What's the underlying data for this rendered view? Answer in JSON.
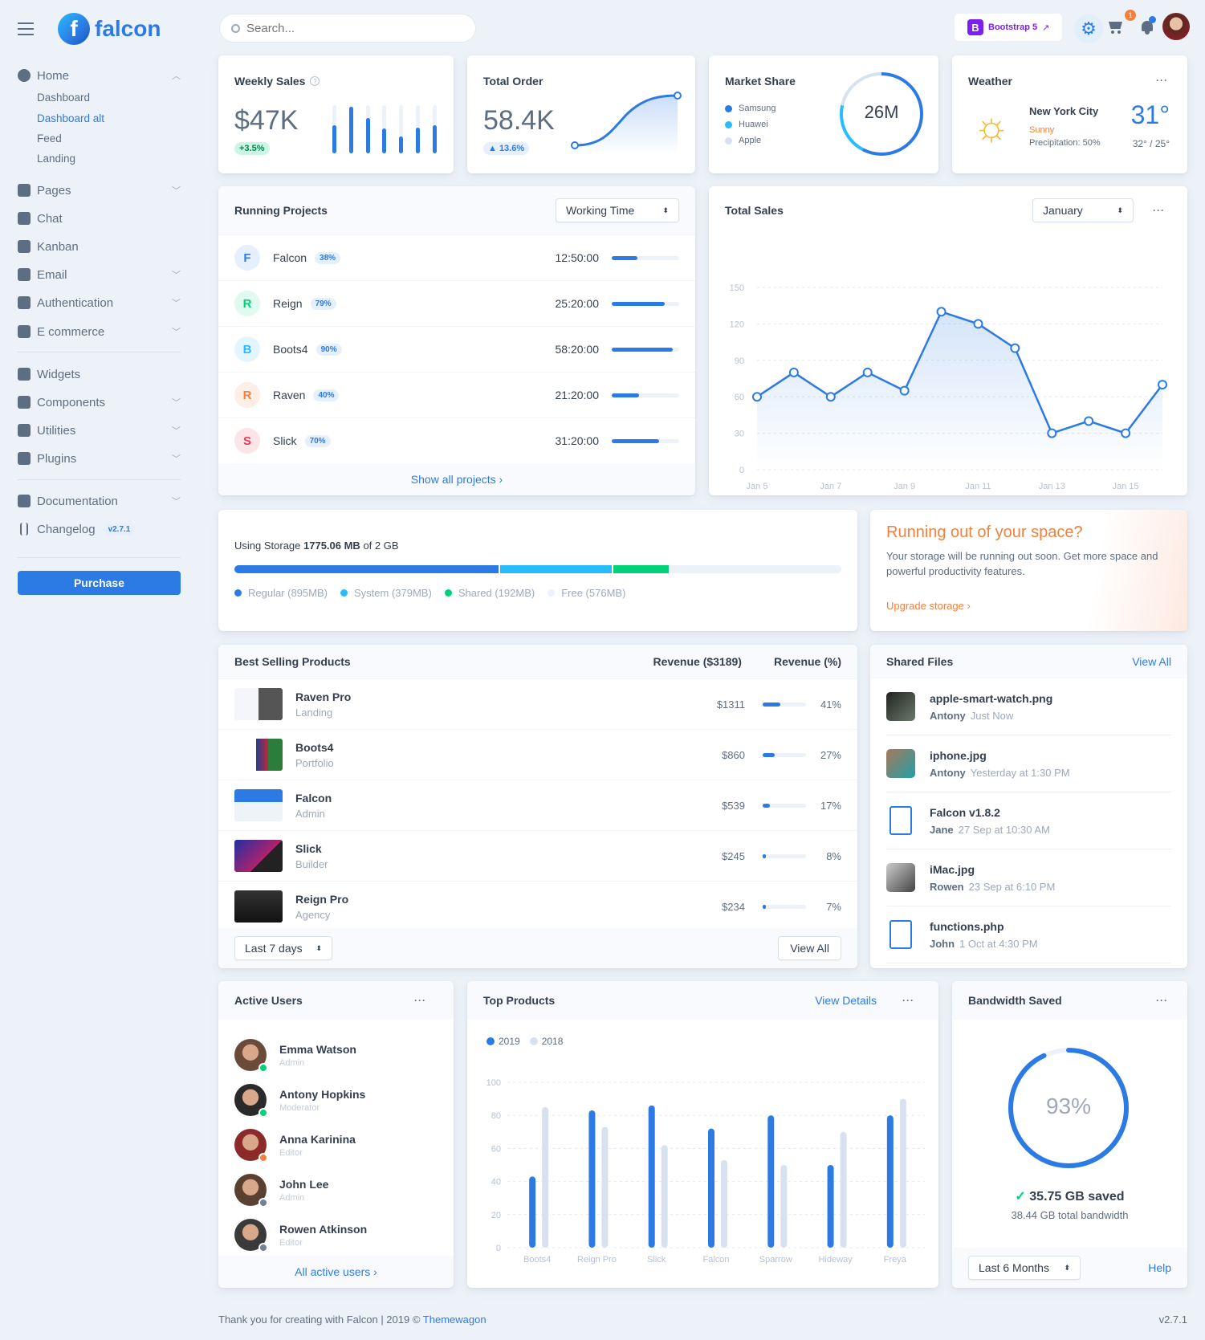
{
  "brand": {
    "name": "falcon"
  },
  "search": {
    "placeholder": "Search..."
  },
  "topbar": {
    "bootstrap_label": "Bootstrap 5",
    "cart_count": "1"
  },
  "sidebar": {
    "home": "Home",
    "sub": [
      "Dashboard",
      "Dashboard alt",
      "Feed",
      "Landing"
    ],
    "items": [
      {
        "label": "Pages",
        "chev": true
      },
      {
        "label": "Chat"
      },
      {
        "label": "Kanban"
      },
      {
        "label": "Email",
        "chev": true
      },
      {
        "label": "Authentication",
        "chev": true
      },
      {
        "label": "E commerce",
        "chev": true
      }
    ],
    "items2": [
      {
        "label": "Widgets"
      },
      {
        "label": "Components",
        "chev": true
      },
      {
        "label": "Utilities",
        "chev": true
      },
      {
        "label": "Plugins",
        "chev": true
      }
    ],
    "documentation": "Documentation",
    "changelog": "Changelog",
    "changelog_badge": "v2.7.1",
    "purchase": "Purchase"
  },
  "weekly_sales": {
    "title": "Weekly Sales",
    "value": "$47K",
    "change": "+3.5%",
    "bars": [
      58,
      97,
      73,
      51,
      35,
      54,
      58
    ]
  },
  "total_order": {
    "title": "Total Order",
    "value": "58.4K",
    "change": "▲ 13.6%"
  },
  "market_share": {
    "title": "Market Share",
    "center": "26M",
    "items": [
      {
        "label": "Samsung",
        "color": "#2c7be5",
        "share": 57.6
      },
      {
        "label": "Huawei",
        "color": "#27bcfd",
        "share": 20.7
      },
      {
        "label": "Apple",
        "color": "#d8e2ef",
        "share": 21.7
      }
    ]
  },
  "weather": {
    "title": "Weather",
    "city": "New York City",
    "condition": "Sunny",
    "precipitation": "Precipitation: 50%",
    "temp": "31°",
    "range": "32° / 25°"
  },
  "running_projects": {
    "title": "Running Projects",
    "select": "Working Time",
    "footer": "Show all projects ›",
    "rows": [
      {
        "initial": "F",
        "name": "Falcon",
        "pct": "38%",
        "value": 38,
        "time": "12:50:00",
        "fg": "#2c7be5",
        "bg": "#e6effc"
      },
      {
        "initial": "R",
        "name": "Reign",
        "pct": "79%",
        "value": 79,
        "time": "25:20:00",
        "fg": "#00d27a",
        "bg": "#e0faef"
      },
      {
        "initial": "B",
        "name": "Boots4",
        "pct": "90%",
        "value": 90,
        "time": "58:20:00",
        "fg": "#27bcfd",
        "bg": "#e3f6ff"
      },
      {
        "initial": "R",
        "name": "Raven",
        "pct": "40%",
        "value": 40,
        "time": "21:20:00",
        "fg": "#f5803e",
        "bg": "#fdeee6"
      },
      {
        "initial": "S",
        "name": "Slick",
        "pct": "70%",
        "value": 70,
        "time": "31:20:00",
        "fg": "#e63757",
        "bg": "#fbe5e9"
      }
    ]
  },
  "chart_data": [
    {
      "type": "line",
      "title": "Total Sales",
      "select": "January",
      "x": [
        "Jan 5",
        "Jan 6",
        "Jan 7",
        "Jan 8",
        "Jan 9",
        "Jan 10",
        "Jan 11",
        "Jan 12",
        "Jan 13",
        "Jan 14",
        "Jan 15",
        "Jan 16"
      ],
      "xticks": [
        "Jan 5",
        "Jan 7",
        "Jan 9",
        "Jan 11",
        "Jan 13",
        "Jan 15"
      ],
      "y": [
        60,
        80,
        60,
        80,
        65,
        130,
        120,
        100,
        30,
        40,
        30,
        70
      ],
      "ylim": [
        0,
        150
      ],
      "yticks": [
        0,
        30,
        60,
        90,
        120,
        150
      ],
      "grid": true,
      "color": "#2c7be5"
    },
    {
      "type": "bar",
      "title": "Top Products",
      "categories": [
        "Boots4",
        "Reign Pro",
        "Slick",
        "Falcon",
        "Sparrow",
        "Hideway",
        "Freya"
      ],
      "series": [
        {
          "name": "2019",
          "values": [
            43,
            83,
            86,
            72,
            80,
            50,
            80
          ],
          "color": "#2c7be5"
        },
        {
          "name": "2018",
          "values": [
            85,
            73,
            62,
            53,
            50,
            70,
            90
          ],
          "color": "#d8e2ef"
        }
      ],
      "ylim": [
        0,
        100
      ],
      "yticks": [
        0,
        20,
        40,
        60,
        80,
        100
      ],
      "grid": true,
      "legend": "top-left"
    }
  ],
  "storage": {
    "prefix": "Using Storage ",
    "used": "1775.06 MB",
    "suffix": " of 2 GB",
    "segments": [
      {
        "label": "Regular (895MB)",
        "mb": 895,
        "color": "#2c7be5"
      },
      {
        "label": "System (379MB)",
        "mb": 379,
        "color": "#27bcfd"
      },
      {
        "label": "Shared (192MB)",
        "mb": 192,
        "color": "#00d27a"
      },
      {
        "label": "Free (576MB)",
        "mb": 576,
        "color": "#edf2f9"
      }
    ]
  },
  "space": {
    "title": "Running out of your space?",
    "text": "Your storage will be running out soon. Get more space and powerful productivity features.",
    "link": "Upgrade storage ›"
  },
  "best_selling": {
    "title": "Best Selling Products",
    "col1": "Revenue ($3189)",
    "col2": "Revenue (%)",
    "select": "Last 7 days",
    "view_all": "View All",
    "rows": [
      {
        "name": "Raven Pro",
        "type": "Landing",
        "revenue": "$1311",
        "pct": "41%",
        "value": 41
      },
      {
        "name": "Boots4",
        "type": "Portfolio",
        "revenue": "$860",
        "pct": "27%",
        "value": 27
      },
      {
        "name": "Falcon",
        "type": "Admin",
        "revenue": "$539",
        "pct": "17%",
        "value": 17
      },
      {
        "name": "Slick",
        "type": "Builder",
        "revenue": "$245",
        "pct": "8%",
        "value": 8
      },
      {
        "name": "Reign Pro",
        "type": "Agency",
        "revenue": "$234",
        "pct": "7%",
        "value": 7
      }
    ]
  },
  "shared_files": {
    "title": "Shared Files",
    "view_all": "View All",
    "files": [
      {
        "name": "apple-smart-watch.png",
        "user": "Antony",
        "time": "Just Now",
        "icon": "image"
      },
      {
        "name": "iphone.jpg",
        "user": "Antony",
        "time": "Yesterday at 1:30 PM",
        "icon": "image"
      },
      {
        "name": "Falcon v1.8.2",
        "user": "Jane",
        "time": "27 Sep at 10:30 AM",
        "icon": "zip-file"
      },
      {
        "name": "iMac.jpg",
        "user": "Rowen",
        "time": "23 Sep at 6:10 PM",
        "icon": "image"
      },
      {
        "name": "functions.php",
        "user": "John",
        "time": "1 Oct at 4:30 PM",
        "icon": "text-file"
      }
    ]
  },
  "active_users": {
    "title": "Active Users",
    "footer": "All active users ›",
    "users": [
      {
        "name": "Emma Watson",
        "role": "Admin",
        "status": "#00d27a"
      },
      {
        "name": "Antony Hopkins",
        "role": "Moderator",
        "status": "#00d27a"
      },
      {
        "name": "Anna Karinina",
        "role": "Editor",
        "status": "#f5803e"
      },
      {
        "name": "John Lee",
        "role": "Admin",
        "status": "#748194"
      },
      {
        "name": "Rowen Atkinson",
        "role": "Editor",
        "status": "#748194"
      }
    ]
  },
  "top_products": {
    "view_details": "View Details"
  },
  "bandwidth": {
    "title": "Bandwidth Saved",
    "percent": "93%",
    "value": 93,
    "saved": "35.75 GB saved",
    "total": "38.44 GB total bandwidth",
    "select": "Last 6 Months",
    "help": "Help"
  },
  "footer": {
    "text": "Thank you for creating with Falcon | 2019 © ",
    "link": "Themewagon",
    "version": "v2.7.1"
  }
}
